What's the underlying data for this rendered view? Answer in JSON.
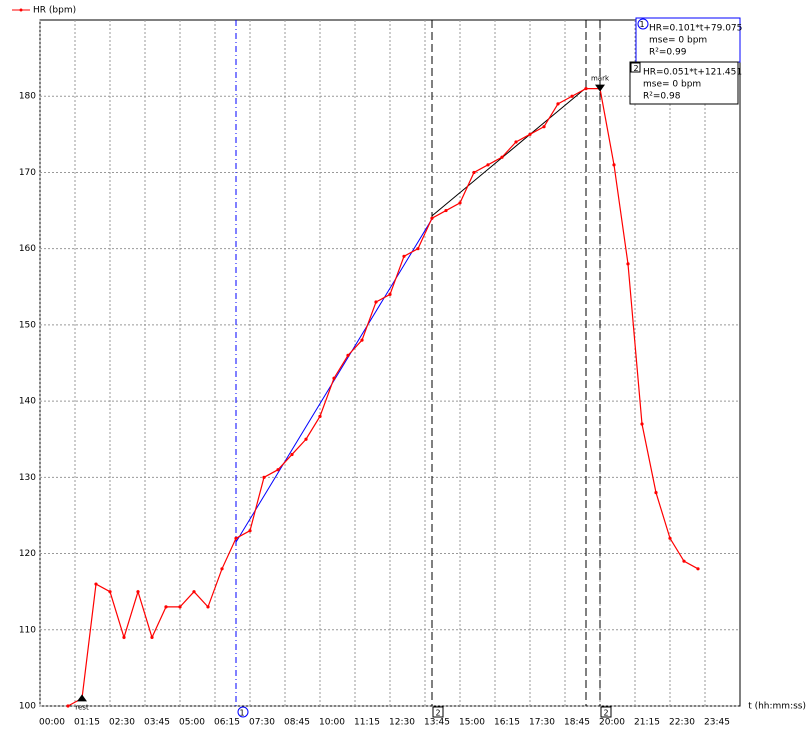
{
  "chart_data": {
    "type": "line",
    "legend": "HR (bpm)",
    "xlabel": "t (hh:mm:ss)",
    "xlim": [
      0,
      1500
    ],
    "ylim": [
      100,
      190
    ],
    "yticks": [
      100,
      110,
      120,
      130,
      140,
      150,
      160,
      170,
      180
    ],
    "xticks": [
      {
        "value": 0,
        "label": "00:00"
      },
      {
        "value": 75,
        "label": "01:15"
      },
      {
        "value": 150,
        "label": "02:30"
      },
      {
        "value": 225,
        "label": "03:45"
      },
      {
        "value": 300,
        "label": "05:00"
      },
      {
        "value": 375,
        "label": "06:15"
      },
      {
        "value": 450,
        "label": "07:30"
      },
      {
        "value": 525,
        "label": "08:45"
      },
      {
        "value": 600,
        "label": "10:00"
      },
      {
        "value": 675,
        "label": "11:15"
      },
      {
        "value": 750,
        "label": "12:30"
      },
      {
        "value": 825,
        "label": "13:45"
      },
      {
        "value": 900,
        "label": "15:00"
      },
      {
        "value": 975,
        "label": "16:15"
      },
      {
        "value": 1050,
        "label": "17:30"
      },
      {
        "value": 1125,
        "label": "18:45"
      },
      {
        "value": 1200,
        "label": "20:00"
      },
      {
        "value": 1275,
        "label": "21:15"
      },
      {
        "value": 1350,
        "label": "22:30"
      },
      {
        "value": 1425,
        "label": "23:45"
      }
    ],
    "grid": true,
    "x": [
      60,
      90,
      120,
      150,
      180,
      210,
      240,
      270,
      300,
      330,
      360,
      390,
      420,
      450,
      480,
      510,
      540,
      570,
      600,
      630,
      660,
      690,
      720,
      750,
      780,
      810,
      840,
      870,
      900,
      930,
      960,
      990,
      1020,
      1050,
      1080,
      1110,
      1140,
      1170,
      1200,
      1230,
      1260,
      1290,
      1320,
      1350,
      1380,
      1410
    ],
    "series": [
      {
        "name": "HR (bpm)",
        "color": "#ff0000",
        "values": [
          100,
          101,
          116,
          115,
          109,
          115,
          109,
          113,
          113,
          115,
          113,
          118,
          122,
          123,
          130,
          131,
          133,
          135,
          138,
          143,
          146,
          148,
          153,
          154,
          159,
          160,
          164,
          165,
          166,
          170,
          171,
          172,
          174,
          175,
          176,
          179,
          180,
          181,
          181,
          171,
          158,
          137,
          128,
          122,
          119,
          118
        ]
      }
    ],
    "fits": [
      {
        "color": "#0000ff",
        "tag": "1",
        "x": [
          420,
          840
        ],
        "values": [
          121.5,
          163.9
        ],
        "text": [
          "HR=0.101*t+79.075",
          "mse=  0 bpm",
          "R²=0.99"
        ]
      },
      {
        "color": "#000000",
        "tag": "2",
        "x": [
          840,
          1170
        ],
        "values": [
          164.3,
          181.1
        ],
        "text": [
          "HR=0.051*t+121.451",
          "mse=  0 bpm",
          "R²=0.98"
        ]
      }
    ],
    "markers": [
      {
        "x": 420,
        "color": "#0000ff",
        "tag": "1"
      },
      {
        "x": 840,
        "color": "#000000",
        "tag": "2"
      },
      {
        "x": 1170,
        "color": "#000000"
      },
      {
        "x": 1200,
        "color": "#000000",
        "tag": "2"
      }
    ],
    "annotations": [
      {
        "text": "rest",
        "x": 90,
        "value": 101
      },
      {
        "text": "mark",
        "x": 1200,
        "value": 181
      }
    ]
  }
}
